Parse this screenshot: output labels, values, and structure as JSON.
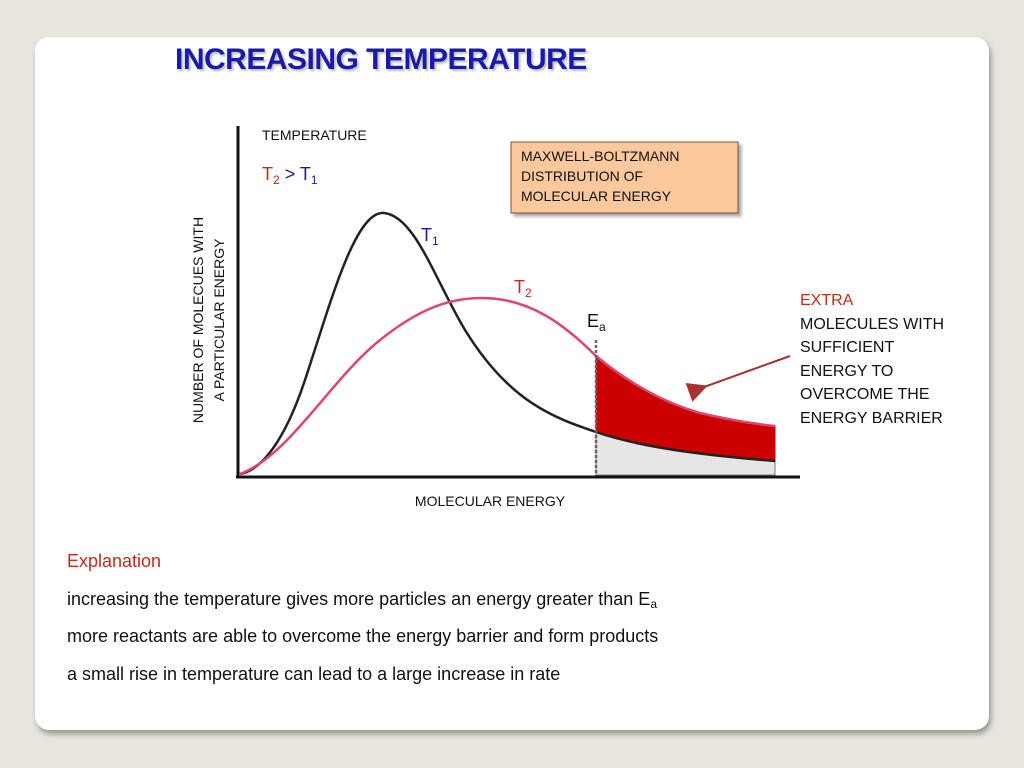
{
  "slide": {
    "title": "INCREASING TEMPERATURE"
  },
  "diagram": {
    "temperature_label": "TEMPERATURE",
    "temp_compare": {
      "left_main": "T",
      "left_sub": "2",
      "op": " > ",
      "right_main": "T",
      "right_sub": "1"
    },
    "box_lines": [
      "MAXWELL-BOLTZMANN",
      "DISTRIBUTION OF",
      "MOLECULAR ENERGY"
    ],
    "y_axis_lines": [
      "NUMBER OF MOLECUES WITH",
      "A PARTICULAR ENERGY"
    ],
    "x_axis_label": "MOLECULAR ENERGY",
    "curve_labels": {
      "t1": {
        "main": "T",
        "sub": "1"
      },
      "t2": {
        "main": "T",
        "sub": "2"
      }
    },
    "ea_label": {
      "main": "E",
      "sub": "a"
    },
    "extra_lines": [
      "EXTRA",
      "MOLECULES WITH",
      "SUFFICIENT",
      "ENERGY TO",
      "OVERCOME THE",
      "ENERGY BARRIER"
    ],
    "colors": {
      "t1_curve": "#222222",
      "t2_curve": "#e0456f",
      "extra_fill": "#cc0000",
      "box_fill": "#fdc89c",
      "red_text": "#c62a1a",
      "blue_text": "#1a1aa8",
      "arrow": "#a83232"
    }
  },
  "explanation": {
    "heading": "Explanation",
    "line1_main": "increasing the temperature gives more particles an energy greater than E",
    "line1_sub": "a",
    "line2": "more reactants are able to overcome the energy barrier and form products",
    "line3": "a small rise in temperature can lead to a large increase in rate"
  }
}
